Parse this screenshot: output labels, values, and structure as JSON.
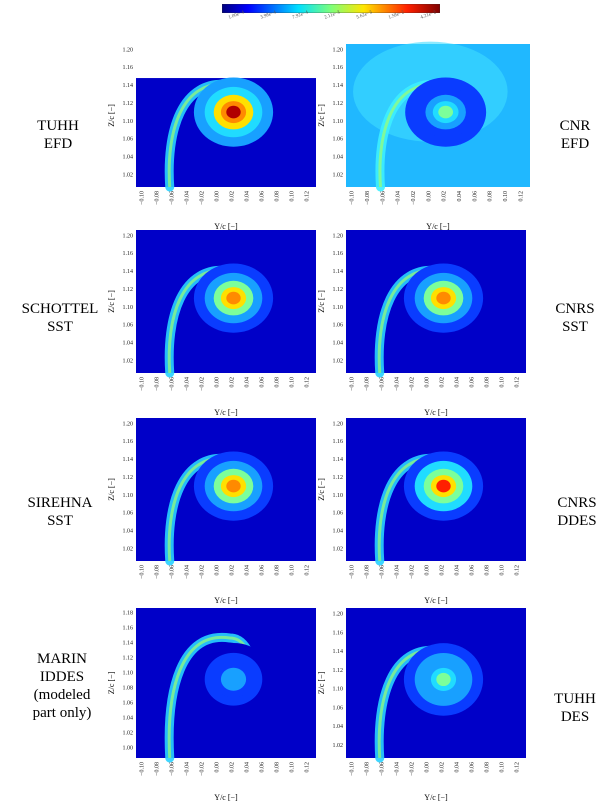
{
  "colorbar": {
    "ticks": [
      "1.00e−4",
      "3.98e−4",
      "7.92e−4",
      "2.11e−3",
      "5.62e−3",
      "1.58e−2",
      "4.21e−2"
    ]
  },
  "labels": {
    "row1_left": [
      "TUHH",
      "EFD"
    ],
    "row1_right": [
      "CNR",
      "EFD"
    ],
    "row2_left": [
      "SCHOTTEL",
      "SST"
    ],
    "row2_right": [
      "CNRS",
      "SST"
    ],
    "row3_left": [
      "SIREHNA",
      "SST"
    ],
    "row3_right": [
      "CNRS",
      "DDES"
    ],
    "row4_left": [
      "MARIN",
      "IDDES",
      "(modeled",
      "part only)"
    ],
    "row4_right": [
      "TUHH",
      "DES"
    ]
  },
  "axes": {
    "xlabel": "Y/c [−]",
    "ylabel": "Z/c [−]",
    "xticks": [
      "−0.10",
      "−0.08",
      "−0.06",
      "−0.04",
      "−0.02",
      "0.00",
      "0.02",
      "0.04",
      "0.06",
      "0.08",
      "0.10",
      "0.12"
    ],
    "yticks_a": [
      "1.20",
      "1.16",
      "1.14",
      "1.12",
      "1.10",
      "1.06",
      "1.04",
      "1.02"
    ],
    "yticks_b": [
      "1.18",
      "1.16",
      "1.14",
      "1.12",
      "1.10",
      "1.08",
      "1.06",
      "1.04",
      "1.02",
      "1.00"
    ]
  },
  "chart_data": [
    {
      "type": "heatmap",
      "panel": "TUHH EFD",
      "xlim": [
        -0.11,
        0.13
      ],
      "ylim": [
        1.0,
        1.21
      ],
      "vortex_core": [
        0.02,
        1.11
      ],
      "peak_level": 1.0,
      "data_top": 1.16
    },
    {
      "type": "heatmap",
      "panel": "CNR EFD",
      "xlim": [
        -0.11,
        0.13
      ],
      "ylim": [
        1.0,
        1.21
      ],
      "vortex_core": [
        0.02,
        1.11
      ],
      "peak_level": 0.45
    },
    {
      "type": "heatmap",
      "panel": "SCHOTTEL SST",
      "xlim": [
        -0.11,
        0.13
      ],
      "ylim": [
        1.0,
        1.21
      ],
      "vortex_core": [
        0.02,
        1.11
      ],
      "peak_level": 0.75
    },
    {
      "type": "heatmap",
      "panel": "CNRS SST",
      "xlim": [
        -0.11,
        0.13
      ],
      "ylim": [
        1.0,
        1.21
      ],
      "vortex_core": [
        0.02,
        1.11
      ],
      "peak_level": 0.75
    },
    {
      "type": "heatmap",
      "panel": "SIREHNA SST",
      "xlim": [
        -0.11,
        0.13
      ],
      "ylim": [
        1.0,
        1.21
      ],
      "vortex_core": [
        0.02,
        1.11
      ],
      "peak_level": 0.75
    },
    {
      "type": "heatmap",
      "panel": "CNRS DDES",
      "xlim": [
        -0.11,
        0.13
      ],
      "ylim": [
        1.0,
        1.21
      ],
      "vortex_core": [
        0.02,
        1.11
      ],
      "peak_level": 0.85
    },
    {
      "type": "heatmap",
      "panel": "MARIN IDDES",
      "xlim": [
        -0.11,
        0.13
      ],
      "ylim": [
        0.99,
        1.19
      ],
      "vortex_core": [
        0.02,
        1.095
      ],
      "peak_level": 0.3
    },
    {
      "type": "heatmap",
      "panel": "TUHH DES",
      "xlim": [
        -0.11,
        0.13
      ],
      "ylim": [
        1.0,
        1.21
      ],
      "vortex_core": [
        0.02,
        1.11
      ],
      "peak_level": 0.5
    }
  ]
}
